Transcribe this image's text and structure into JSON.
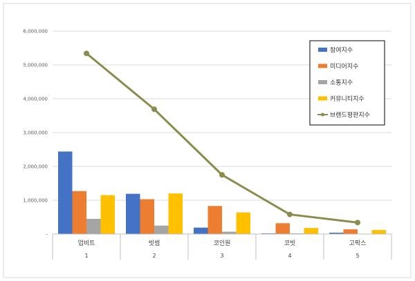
{
  "chart_data": {
    "type": "bar",
    "categories": [
      "업비트",
      "빗썸",
      "코인원",
      "코빗",
      "고팍스"
    ],
    "category_index": [
      "1",
      "2",
      "3",
      "4",
      "5"
    ],
    "ylim": [
      0,
      6000000
    ],
    "yticks": [
      0,
      1000000,
      2000000,
      3000000,
      4000000,
      5000000,
      6000000
    ],
    "ytick_labels": [
      "-",
      "1,000,000",
      "2,000,000",
      "3,000,000",
      "4,000,000",
      "5,000,000",
      "6,000,000"
    ],
    "grid": true,
    "legend_position": "top-right",
    "series": [
      {
        "name": "참여지수",
        "type": "bar",
        "color": "#4472C4",
        "values": [
          2440000,
          1190000,
          190000,
          20000,
          40000
        ]
      },
      {
        "name": "미디어지수",
        "type": "bar",
        "color": "#ED7D31",
        "values": [
          1270000,
          1030000,
          830000,
          320000,
          140000
        ]
      },
      {
        "name": "소통지수",
        "type": "bar",
        "color": "#A5A5A5",
        "values": [
          450000,
          250000,
          70000,
          20000,
          10000
        ]
      },
      {
        "name": "커뮤니티지수",
        "type": "bar",
        "color": "#FFC000",
        "values": [
          1150000,
          1200000,
          640000,
          180000,
          120000
        ]
      },
      {
        "name": "브랜드평판지수",
        "type": "line",
        "color": "#8B8B4E",
        "values": [
          5340000,
          3690000,
          1750000,
          580000,
          340000
        ]
      }
    ]
  }
}
